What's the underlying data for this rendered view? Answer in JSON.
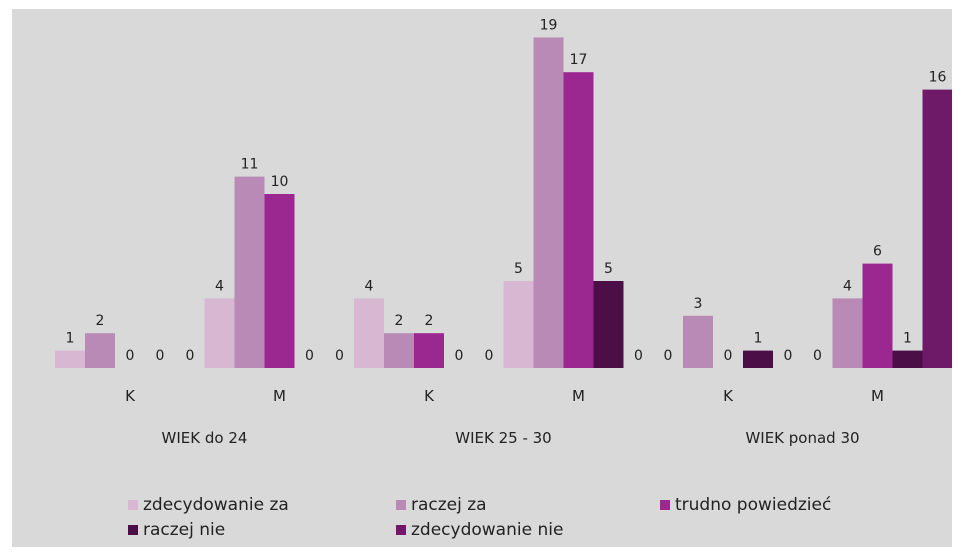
{
  "chart_data": {
    "type": "bar",
    "groups": [
      {
        "label": "WIEK do 24",
        "categories": [
          "K",
          "M"
        ]
      },
      {
        "label": "WIEK 25 - 30",
        "categories": [
          "K",
          "M"
        ]
      },
      {
        "label": "WIEK ponad 30",
        "categories": [
          "K",
          "M"
        ]
      }
    ],
    "categories": [
      "K",
      "M",
      "K",
      "M",
      "K",
      "M"
    ],
    "series": [
      {
        "name": "zdecydowanie za",
        "color": "#d7b7d2",
        "values": [
          1,
          4,
          4,
          5,
          0,
          0
        ]
      },
      {
        "name": "raczej za",
        "color": "#b98ab6",
        "values": [
          2,
          11,
          2,
          19,
          3,
          4
        ]
      },
      {
        "name": "trudno powiedzieć",
        "color": "#9b2891",
        "values": [
          0,
          10,
          2,
          17,
          0,
          6
        ]
      },
      {
        "name": "raczej nie",
        "color": "#4b0e47",
        "values": [
          0,
          0,
          0,
          5,
          1,
          1
        ]
      },
      {
        "name": "zdecydowanie nie",
        "color": "#6e1a68",
        "values": [
          0,
          0,
          0,
          0,
          0,
          16
        ]
      }
    ],
    "ylim": [
      0,
      20
    ],
    "grid": false,
    "legend_position": "bottom"
  }
}
